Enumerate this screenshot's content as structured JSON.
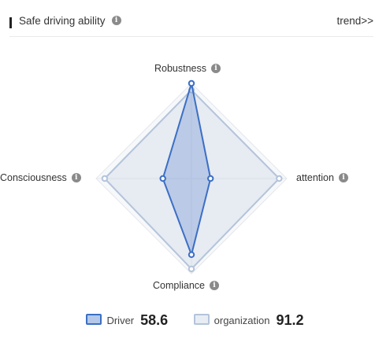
{
  "header": {
    "title": "Safe driving ability",
    "trend_label": "trend>>"
  },
  "chart_data": {
    "type": "radar",
    "axes": [
      "Robustness",
      "attention",
      "Compliance",
      "Consciousness"
    ],
    "rmax": 100,
    "rings": 4,
    "series": [
      {
        "name": "Driver",
        "values": [
          100,
          20,
          80,
          30
        ],
        "total": "58.6"
      },
      {
        "name": "organization",
        "values": [
          93,
          92,
          95,
          91
        ],
        "total": "91.2"
      }
    ]
  },
  "colors": {
    "driver_line": "#3b6fc4",
    "driver_fill": "#4a78c8",
    "org_line": "#b3c4db",
    "org_fill": "#c9d4e3",
    "grid": "#e4e7ec"
  }
}
